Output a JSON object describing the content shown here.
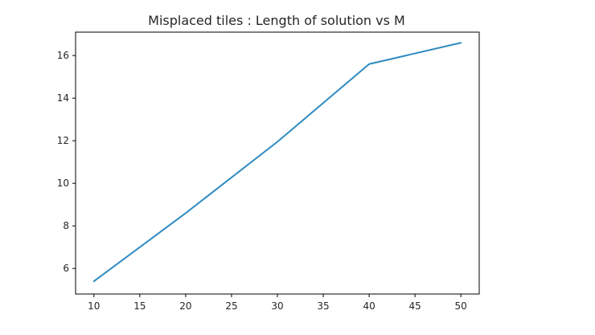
{
  "chart_data": {
    "type": "line",
    "title": "Misplaced tiles : Length of solution vs M",
    "xlabel": "",
    "ylabel": "",
    "x": [
      10,
      20,
      30,
      40,
      50
    ],
    "series": [
      {
        "values": [
          5.4,
          8.6,
          11.95,
          15.6,
          16.6
        ],
        "color": "#2e8bc0"
      }
    ],
    "xlim": [
      8,
      52
    ],
    "ylim": [
      4.8,
      17.1
    ],
    "xticks": [
      10,
      15,
      20,
      25,
      30,
      35,
      40,
      45,
      50
    ],
    "yticks": [
      6,
      8,
      10,
      12,
      14,
      16
    ],
    "grid": false,
    "legend": "none"
  }
}
